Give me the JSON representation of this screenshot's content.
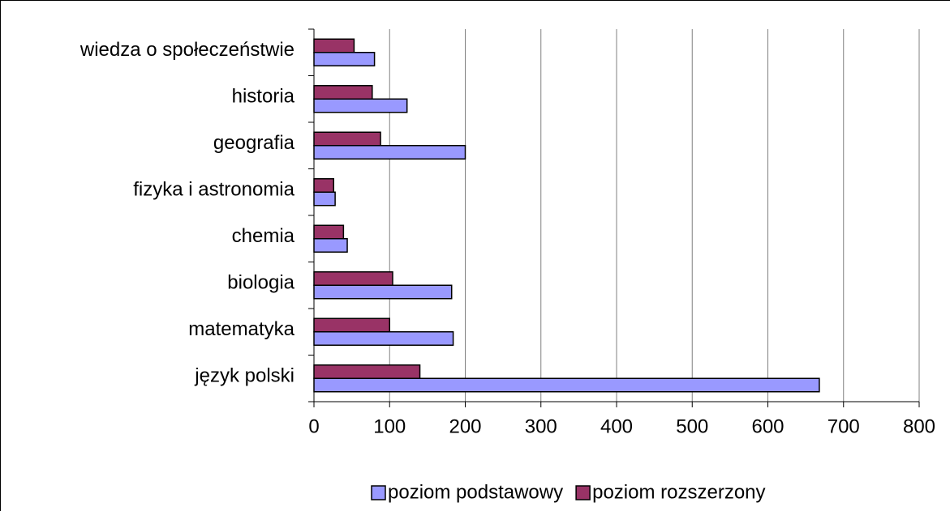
{
  "chart_data": {
    "type": "bar",
    "orientation": "horizontal",
    "categories": [
      "wiedza o społeczeństwie",
      "historia",
      "geografia",
      "fizyka i astronomia",
      "chemia",
      "biologia",
      "matematyka",
      "język polski"
    ],
    "series": [
      {
        "name": "poziom podstawowy",
        "color": "#9999ff",
        "values": [
          80,
          123,
          200,
          28,
          44,
          182,
          184,
          668
        ]
      },
      {
        "name": "poziom rozszerzony",
        "color": "#993366",
        "values": [
          53,
          77,
          88,
          26,
          39,
          104,
          100,
          140
        ]
      }
    ],
    "xlim": [
      0,
      800
    ],
    "xticks": [
      0,
      100,
      200,
      300,
      400,
      500,
      600,
      700,
      800
    ],
    "grid": true,
    "legend": "bottom"
  }
}
